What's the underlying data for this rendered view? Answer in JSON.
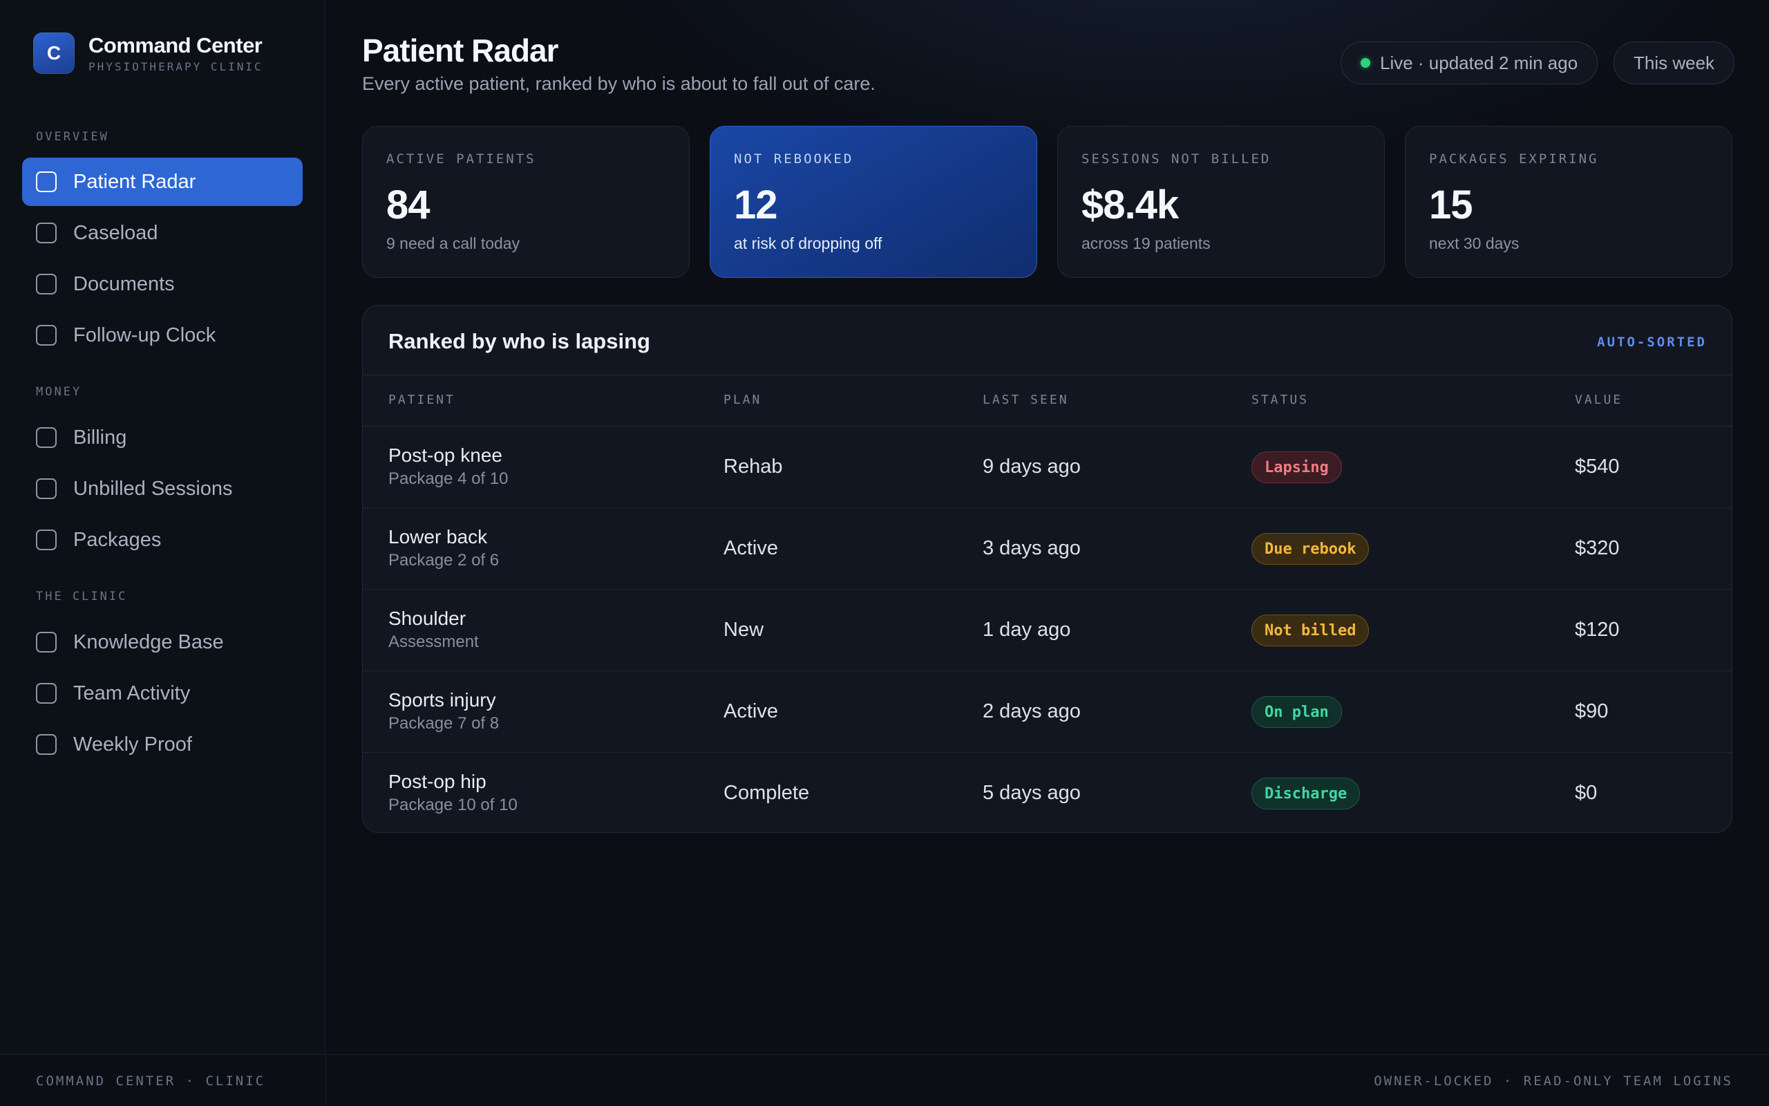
{
  "brand": {
    "logo_letter": "C",
    "title": "Command Center",
    "subtitle": "PHYSIOTHERAPY CLINIC"
  },
  "sidebar": {
    "sections": [
      {
        "label": "OVERVIEW",
        "items": [
          "Patient Radar",
          "Caseload",
          "Documents",
          "Follow-up Clock"
        ]
      },
      {
        "label": "MONEY",
        "items": [
          "Billing",
          "Unbilled Sessions",
          "Packages"
        ]
      },
      {
        "label": "THE CLINIC",
        "items": [
          "Knowledge Base",
          "Team Activity",
          "Weekly Proof"
        ]
      }
    ],
    "active_item": "Patient Radar"
  },
  "header": {
    "title": "Patient Radar",
    "subtitle": "Every active patient, ranked by who is about to fall out of care.",
    "live_status": "Live · updated 2 min ago",
    "range_button": "This week"
  },
  "kpis": [
    {
      "label": "ACTIVE PATIENTS",
      "value": "84",
      "note": "9 need a call today",
      "highlight": false
    },
    {
      "label": "NOT REBOOKED",
      "value": "12",
      "note": "at risk of dropping off",
      "highlight": true
    },
    {
      "label": "SESSIONS NOT BILLED",
      "value": "$8.4k",
      "note": "across 19 patients",
      "highlight": false
    },
    {
      "label": "PACKAGES EXPIRING",
      "value": "15",
      "note": "next 30 days",
      "highlight": false
    }
  ],
  "table": {
    "title": "Ranked by who is lapsing",
    "tag": "AUTO-SORTED",
    "columns": [
      "PATIENT",
      "PLAN",
      "LAST SEEN",
      "STATUS",
      "VALUE"
    ],
    "rows": [
      {
        "patient": "Post-op knee",
        "detail": "Package 4 of 10",
        "plan": "Rehab",
        "last_seen": "9 days ago",
        "status": "Lapsing",
        "status_tone": "red",
        "value": "$540"
      },
      {
        "patient": "Lower back",
        "detail": "Package 2 of 6",
        "plan": "Active",
        "last_seen": "3 days ago",
        "status": "Due rebook",
        "status_tone": "amber",
        "value": "$320"
      },
      {
        "patient": "Shoulder",
        "detail": "Assessment",
        "plan": "New",
        "last_seen": "1 day ago",
        "status": "Not billed",
        "status_tone": "amber",
        "value": "$120"
      },
      {
        "patient": "Sports injury",
        "detail": "Package 7 of 8",
        "plan": "Active",
        "last_seen": "2 days ago",
        "status": "On plan",
        "status_tone": "green",
        "value": "$90"
      },
      {
        "patient": "Post-op hip",
        "detail": "Package 10 of 10",
        "plan": "Complete",
        "last_seen": "5 days ago",
        "status": "Discharge",
        "status_tone": "green",
        "value": "$0"
      }
    ]
  },
  "footer": {
    "left": "COMMAND CENTER · CLINIC",
    "right": "OWNER-LOCKED · READ-ONLY TEAM LOGINS"
  },
  "colors": {
    "accent": "#2e67d4",
    "live": "#2fd27c",
    "status_red": "#f27a84",
    "status_amber": "#f3b73c",
    "status_green": "#3fd9a0"
  }
}
